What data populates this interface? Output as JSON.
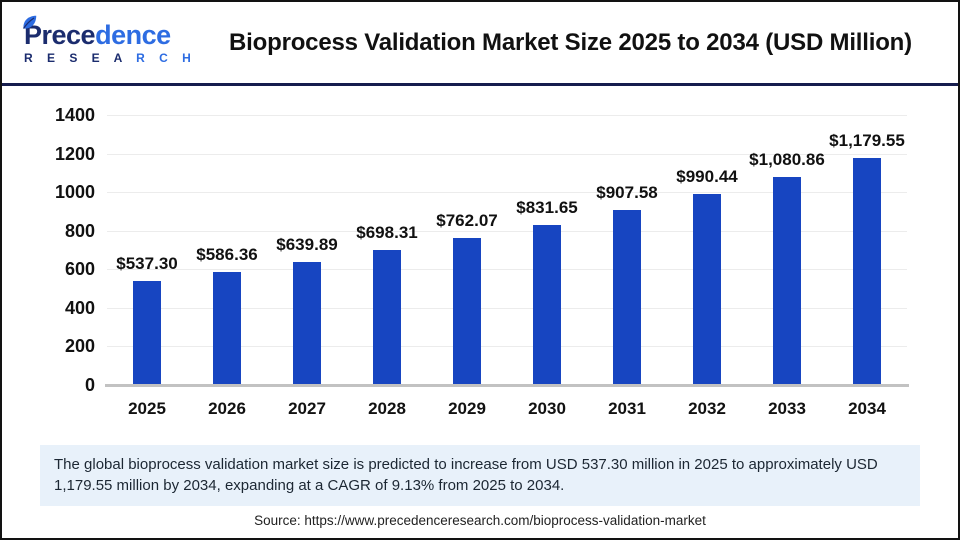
{
  "header": {
    "logo": {
      "word_part1": "Prece",
      "word_part2": "dence",
      "sub_part1": "R E S E A ",
      "sub_part2": "R C H",
      "dark_color": "#1b2c6e",
      "light_color": "#2d6ce2"
    },
    "title": "Bioprocess Validation Market Size 2025 to 2034 (USD Million)"
  },
  "chart_data": {
    "type": "bar",
    "title": "Bioprocess Validation Market Size 2025 to 2034 (USD Million)",
    "categories": [
      "2025",
      "2026",
      "2027",
      "2028",
      "2029",
      "2030",
      "2031",
      "2032",
      "2033",
      "2034"
    ],
    "values": [
      537.3,
      586.36,
      639.89,
      698.31,
      762.07,
      831.65,
      907.58,
      990.44,
      1080.86,
      1179.55
    ],
    "value_labels": [
      "$537.30",
      "$586.36",
      "$639.89",
      "$698.31",
      "$762.07",
      "$831.65",
      "$907.58",
      "$990.44",
      "$1,080.86",
      "$1,179.55"
    ],
    "xlabel": "",
    "ylabel": "",
    "ylim": [
      0,
      1400
    ],
    "yticks": [
      0,
      200,
      400,
      600,
      800,
      1000,
      1200,
      1400
    ],
    "grid": true,
    "legend_position": "none",
    "bar_color": "#1745c1"
  },
  "summary": {
    "text": "The global bioprocess validation market size is predicted to increase from USD 537.30 million in 2025 to approximately USD 1,179.55 million by 2034, expanding at a CAGR of 9.13% from 2025 to 2034."
  },
  "source": {
    "text": "Source: https://www.precedenceresearch.com/bioprocess-validation-market"
  }
}
